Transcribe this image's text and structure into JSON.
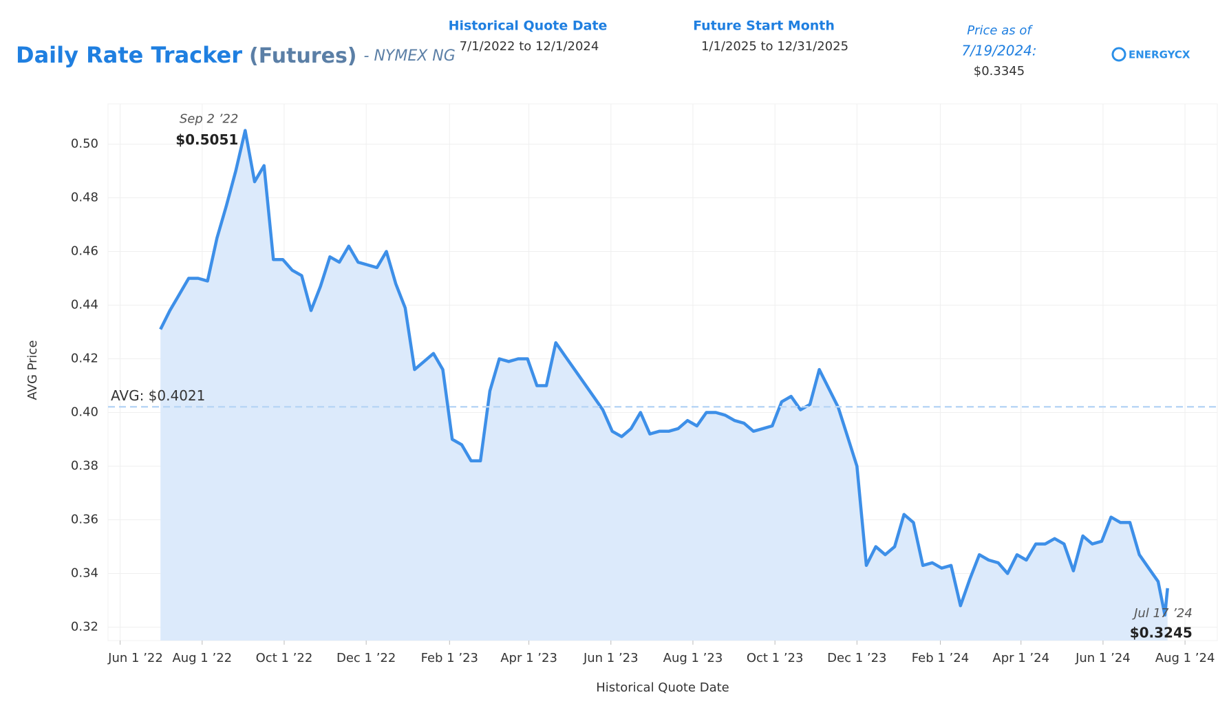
{
  "header": {
    "title": "Daily Rate Tracker",
    "title_suffix": "(Futures)",
    "subtitle": "- NYMEX NG",
    "filters": [
      {
        "label": "Historical Quote Date",
        "value": "7/1/2022 to 12/1/2024"
      },
      {
        "label": "Future Start Month",
        "value": "1/1/2025 to 12/31/2025"
      }
    ],
    "price_as_of": {
      "label": "Price as of",
      "date": "7/19/2024:",
      "price": "$0.3345"
    },
    "logo": "ENERGYCX"
  },
  "chart_data": {
    "type": "area",
    "x_label": "Historical Quote Date",
    "y_label": "AVG Price",
    "color": "#3d8fe8",
    "fill": "#dceafb",
    "grid": true,
    "xlim": [
      "2022-05-23",
      "2024-08-25"
    ],
    "xticks": [
      {
        "value": "2022-06-01",
        "label": "Jun 1 ’22"
      },
      {
        "value": "2022-08-01",
        "label": "Aug 1 ’22"
      },
      {
        "value": "2022-10-01",
        "label": "Oct 1 ’22"
      },
      {
        "value": "2022-12-01",
        "label": "Dec 1 ’22"
      },
      {
        "value": "2023-02-01",
        "label": "Feb 1 ’23"
      },
      {
        "value": "2023-04-01",
        "label": "Apr 1 ’23"
      },
      {
        "value": "2023-06-01",
        "label": "Jun 1 ’23"
      },
      {
        "value": "2023-08-01",
        "label": "Aug 1 ’23"
      },
      {
        "value": "2023-10-01",
        "label": "Oct 1 ’23"
      },
      {
        "value": "2023-12-01",
        "label": "Dec 1 ’23"
      },
      {
        "value": "2024-02-01",
        "label": "Feb 1 ’24"
      },
      {
        "value": "2024-04-01",
        "label": "Apr 1 ’24"
      },
      {
        "value": "2024-06-01",
        "label": "Jun 1 ’24"
      },
      {
        "value": "2024-08-01",
        "label": "Aug 1 ’24"
      }
    ],
    "ylim": [
      0.315,
      0.515
    ],
    "yticks": [
      {
        "value": 0.32,
        "label": "0.32"
      },
      {
        "value": 0.34,
        "label": "0.34"
      },
      {
        "value": 0.36,
        "label": "0.36"
      },
      {
        "value": 0.38,
        "label": "0.38"
      },
      {
        "value": 0.4,
        "label": "0.40"
      },
      {
        "value": 0.42,
        "label": "0.42"
      },
      {
        "value": 0.44,
        "label": "0.44"
      },
      {
        "value": 0.46,
        "label": "0.46"
      },
      {
        "value": 0.48,
        "label": "0.48"
      },
      {
        "value": 0.5,
        "label": "0.50"
      }
    ],
    "reference_line": {
      "value": 0.4021,
      "label": "AVG: $0.4021"
    },
    "annotations": [
      {
        "x": "2022-09-02",
        "label": "Sep 2 ’22",
        "value": 0.5051,
        "value_label": "$0.5051"
      },
      {
        "x": "2024-07-17",
        "label": "Jul 17 ’24",
        "value": 0.3245,
        "value_label": "$0.3245"
      }
    ],
    "x": [
      "2022-07-01",
      "2022-07-08",
      "2022-07-15",
      "2022-07-22",
      "2022-07-29",
      "2022-08-05",
      "2022-08-12",
      "2022-08-19",
      "2022-08-26",
      "2022-09-02",
      "2022-09-09",
      "2022-09-16",
      "2022-09-23",
      "2022-09-30",
      "2022-10-07",
      "2022-10-14",
      "2022-10-21",
      "2022-10-28",
      "2022-11-04",
      "2022-11-11",
      "2022-11-18",
      "2022-11-25",
      "2022-12-02",
      "2022-12-09",
      "2022-12-16",
      "2022-12-23",
      "2022-12-30",
      "2023-01-06",
      "2023-01-13",
      "2023-01-20",
      "2023-01-27",
      "2023-02-03",
      "2023-02-10",
      "2023-02-17",
      "2023-02-24",
      "2023-03-03",
      "2023-03-10",
      "2023-03-17",
      "2023-03-24",
      "2023-03-31",
      "2023-04-07",
      "2023-04-14",
      "2023-04-21",
      "2023-04-28",
      "2023-05-05",
      "2023-05-12",
      "2023-05-19",
      "2023-05-26",
      "2023-06-02",
      "2023-06-09",
      "2023-06-16",
      "2023-06-23",
      "2023-06-30",
      "2023-07-07",
      "2023-07-14",
      "2023-07-21",
      "2023-07-28",
      "2023-08-04",
      "2023-08-11",
      "2023-08-18",
      "2023-08-25",
      "2023-09-01",
      "2023-09-08",
      "2023-09-15",
      "2023-09-22",
      "2023-09-29",
      "2023-10-06",
      "2023-10-13",
      "2023-10-20",
      "2023-10-27",
      "2023-11-03",
      "2023-11-10",
      "2023-11-17",
      "2023-11-24",
      "2023-12-01",
      "2023-12-08",
      "2023-12-15",
      "2023-12-22",
      "2023-12-29",
      "2024-01-05",
      "2024-01-12",
      "2024-01-19",
      "2024-01-26",
      "2024-02-02",
      "2024-02-09",
      "2024-02-16",
      "2024-02-23",
      "2024-03-01",
      "2024-03-08",
      "2024-03-15",
      "2024-03-22",
      "2024-03-29",
      "2024-04-05",
      "2024-04-12",
      "2024-04-19",
      "2024-04-26",
      "2024-05-03",
      "2024-05-10",
      "2024-05-17",
      "2024-05-24",
      "2024-05-31",
      "2024-06-07",
      "2024-06-14",
      "2024-06-21",
      "2024-06-28",
      "2024-07-05",
      "2024-07-12",
      "2024-07-17",
      "2024-07-19"
    ],
    "values": [
      0.431,
      0.438,
      0.444,
      0.45,
      0.45,
      0.449,
      0.465,
      0.477,
      0.49,
      0.5051,
      0.486,
      0.492,
      0.457,
      0.457,
      0.453,
      0.451,
      0.438,
      0.447,
      0.458,
      0.456,
      0.462,
      0.456,
      0.455,
      0.454,
      0.46,
      0.448,
      0.439,
      0.416,
      0.419,
      0.422,
      0.416,
      0.39,
      0.388,
      0.382,
      0.382,
      0.408,
      0.42,
      0.419,
      0.42,
      0.42,
      0.41,
      0.41,
      0.426,
      0.421,
      0.416,
      0.411,
      0.406,
      0.401,
      0.393,
      0.391,
      0.394,
      0.4,
      0.392,
      0.393,
      0.393,
      0.394,
      0.397,
      0.395,
      0.4,
      0.4,
      0.399,
      0.397,
      0.396,
      0.393,
      0.394,
      0.395,
      0.404,
      0.406,
      0.401,
      0.403,
      0.416,
      0.409,
      0.402,
      0.391,
      0.38,
      0.343,
      0.35,
      0.347,
      0.35,
      0.362,
      0.359,
      0.343,
      0.344,
      0.342,
      0.343,
      0.328,
      0.338,
      0.347,
      0.345,
      0.344,
      0.34,
      0.347,
      0.345,
      0.351,
      0.351,
      0.353,
      0.351,
      0.341,
      0.354,
      0.351,
      0.352,
      0.361,
      0.359,
      0.359,
      0.347,
      0.342,
      0.337,
      0.3245,
      0.3345
    ]
  }
}
